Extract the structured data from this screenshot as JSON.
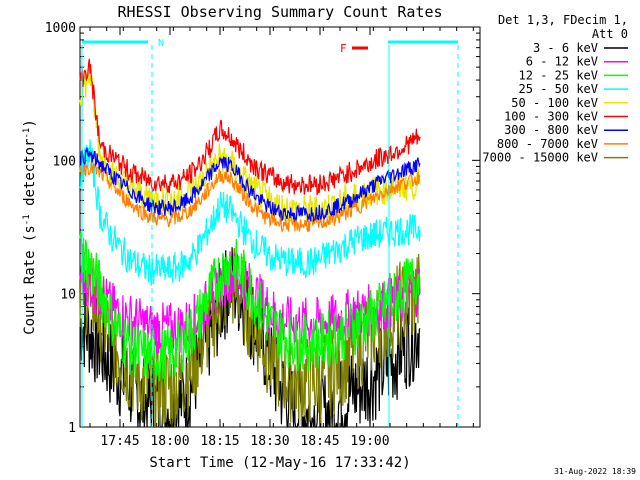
{
  "chart_data": {
    "type": "line",
    "title": "RHESSI Observing Summary Count Rates",
    "xlabel": "Start Time (12-May-16 17:33:42)",
    "ylabel_main": "Count Rate (s",
    "ylabel_sup1": "-1",
    "ylabel_mid": " detector",
    "ylabel_sup2": "-1",
    "ylabel_end": ")",
    "y_scale": "log",
    "ylim": [
      1,
      1000
    ],
    "y_ticks": [
      {
        "value": 1,
        "label": "1"
      },
      {
        "value": 10,
        "label": "10"
      },
      {
        "value": 100,
        "label": "100"
      },
      {
        "value": 1000,
        "label": "1000"
      }
    ],
    "x_range_minutes": [
      17.55,
      19.55
    ],
    "x_ticks": [
      {
        "value": 17.75,
        "label": "17:45"
      },
      {
        "value": 18.0,
        "label": "18:00"
      },
      {
        "value": 18.25,
        "label": "18:15"
      },
      {
        "value": 18.5,
        "label": "18:30"
      },
      {
        "value": 18.75,
        "label": "18:45"
      },
      {
        "value": 19.0,
        "label": "19:00"
      }
    ],
    "legend_title_1": "Det 1,3, FDecim 1,",
    "legend_title_2": "Att 0",
    "legend_position": "right",
    "series": [
      {
        "name": "3 - 6 keV",
        "color": "#000000",
        "x": [
          17.55,
          17.6,
          17.65,
          17.7,
          17.75,
          17.8,
          17.85,
          17.9,
          17.95,
          18.0,
          18.05,
          18.1,
          18.15,
          18.2,
          18.25,
          18.3,
          18.35,
          18.4,
          18.45,
          18.5,
          18.55,
          18.6,
          18.65,
          18.7,
          18.75,
          18.8,
          18.85,
          18.9,
          18.95,
          19.0,
          19.05,
          19.1,
          19.15,
          19.2,
          19.25
        ],
        "values": [
          6,
          5,
          4,
          3,
          2.5,
          2,
          1.6,
          1.5,
          1.4,
          1.4,
          1.5,
          2,
          3,
          5,
          8,
          12,
          10,
          7,
          5,
          3,
          2,
          1.5,
          1.3,
          1.2,
          1.2,
          1.3,
          1.5,
          1.8,
          2,
          2.3,
          2.6,
          3,
          3.8,
          4.5,
          5.5
        ]
      },
      {
        "name": "6 - 12 keV",
        "color": "#ff00ff",
        "x": [
          17.55,
          17.6,
          17.65,
          17.7,
          17.75,
          17.8,
          17.85,
          17.9,
          17.95,
          18.0,
          18.05,
          18.1,
          18.15,
          18.2,
          18.25,
          18.3,
          18.35,
          18.4,
          18.45,
          18.5,
          18.55,
          18.6,
          18.65,
          18.7,
          18.75,
          18.8,
          18.85,
          18.9,
          18.95,
          19.0,
          19.05,
          19.1,
          19.15,
          19.2,
          19.25
        ],
        "values": [
          14,
          12,
          10,
          8,
          7,
          6.5,
          6,
          5.5,
          5.5,
          5.5,
          5.6,
          6,
          7,
          9,
          12,
          14,
          13,
          11,
          9,
          7.5,
          6.5,
          6,
          6,
          6,
          6,
          6.2,
          6.5,
          7,
          7.2,
          7.5,
          8,
          8.5,
          9,
          10,
          11
        ]
      },
      {
        "name": "12 - 25 keV",
        "color": "#00ff00",
        "x": [
          17.55,
          17.6,
          17.65,
          17.7,
          17.75,
          17.8,
          17.85,
          17.9,
          17.95,
          18.0,
          18.05,
          18.1,
          18.15,
          18.2,
          18.25,
          18.3,
          18.35,
          18.4,
          18.45,
          18.5,
          18.55,
          18.6,
          18.65,
          18.7,
          18.75,
          18.8,
          18.85,
          18.9,
          18.95,
          19.0,
          19.05,
          19.1,
          19.15,
          19.2,
          19.25
        ],
        "values": [
          22,
          16,
          11,
          7,
          5,
          4,
          3.6,
          3.4,
          3.4,
          3.5,
          4,
          5,
          7,
          10,
          14,
          17,
          15,
          11,
          8,
          6,
          5,
          4.5,
          4.3,
          4.3,
          4.4,
          4.6,
          5,
          5.5,
          6,
          6.5,
          7.5,
          8.5,
          10,
          12,
          14
        ]
      },
      {
        "name": "25 - 50 keV",
        "color": "#00ffff",
        "x": [
          17.55,
          17.6,
          17.65,
          17.7,
          17.75,
          17.8,
          17.85,
          17.9,
          17.95,
          18.0,
          18.05,
          18.1,
          18.15,
          18.2,
          18.25,
          18.3,
          18.35,
          18.4,
          18.45,
          18.5,
          18.55,
          18.6,
          18.65,
          18.7,
          18.75,
          18.8,
          18.85,
          18.9,
          18.95,
          19.0,
          19.05,
          19.1,
          19.15,
          19.2,
          19.25
        ],
        "values": [
          80,
          120,
          40,
          28,
          22,
          18,
          16,
          15,
          15,
          15,
          16,
          18,
          23,
          32,
          46,
          42,
          33,
          26,
          22,
          19,
          18,
          17,
          17,
          17,
          18,
          20,
          22,
          24,
          26,
          27,
          28,
          29,
          30,
          30,
          30
        ]
      },
      {
        "name": "50 - 100 keV",
        "color": "#e6e600",
        "x": [
          17.55,
          17.6,
          17.65,
          17.7,
          17.75,
          17.8,
          17.85,
          17.9,
          17.95,
          18.0,
          18.05,
          18.1,
          18.15,
          18.2,
          18.25,
          18.3,
          18.35,
          18.4,
          18.45,
          18.5,
          18.55,
          18.6,
          18.65,
          18.7,
          18.75,
          18.8,
          18.85,
          18.9,
          18.95,
          19.0,
          19.05,
          19.1,
          19.15,
          19.2,
          19.25
        ],
        "values": [
          300,
          450,
          110,
          80,
          70,
          62,
          56,
          52,
          50,
          50,
          52,
          58,
          68,
          85,
          105,
          95,
          78,
          64,
          55,
          49,
          45,
          43,
          42,
          42,
          43,
          45,
          48,
          52,
          55,
          58,
          60,
          62,
          64,
          65,
          66
        ]
      },
      {
        "name": "100 - 300 keV",
        "color": "#ff0000",
        "x": [
          17.55,
          17.6,
          17.65,
          17.7,
          17.75,
          17.8,
          17.85,
          17.9,
          17.95,
          18.0,
          18.05,
          18.1,
          18.15,
          18.2,
          18.25,
          18.3,
          18.35,
          18.4,
          18.45,
          18.5,
          18.55,
          18.6,
          18.65,
          18.7,
          18.75,
          18.8,
          18.85,
          18.9,
          18.95,
          19.0,
          19.05,
          19.1,
          19.15,
          19.2,
          19.25
        ],
        "values": [
          400,
          500,
          130,
          110,
          95,
          82,
          75,
          70,
          68,
          68,
          70,
          78,
          95,
          125,
          170,
          150,
          120,
          98,
          85,
          76,
          70,
          67,
          66,
          66,
          67,
          70,
          75,
          82,
          88,
          95,
          105,
          112,
          122,
          135,
          150
        ]
      },
      {
        "name": "300 - 800 keV",
        "color": "#0000ff",
        "x": [
          17.55,
          17.6,
          17.65,
          17.7,
          17.75,
          17.8,
          17.85,
          17.9,
          17.95,
          18.0,
          18.05,
          18.1,
          18.15,
          18.2,
          18.25,
          18.3,
          18.35,
          18.4,
          18.45,
          18.5,
          18.55,
          18.6,
          18.65,
          18.7,
          18.75,
          18.8,
          18.85,
          18.9,
          18.95,
          19.0,
          19.05,
          19.1,
          19.15,
          19.2,
          19.25
        ],
        "values": [
          105,
          110,
          95,
          80,
          68,
          60,
          52,
          46,
          44,
          44,
          46,
          52,
          62,
          78,
          98,
          92,
          76,
          60,
          50,
          44,
          41,
          40,
          40,
          40,
          41,
          43,
          46,
          50,
          56,
          62,
          70,
          76,
          82,
          88,
          95
        ]
      },
      {
        "name": "800 - 7000 keV",
        "color": "#ff8000",
        "x": [
          17.55,
          17.6,
          17.65,
          17.7,
          17.75,
          17.8,
          17.85,
          17.9,
          17.95,
          18.0,
          18.05,
          18.1,
          18.15,
          18.2,
          18.25,
          18.3,
          18.35,
          18.4,
          18.45,
          18.5,
          18.55,
          18.6,
          18.65,
          18.7,
          18.75,
          18.8,
          18.85,
          18.9,
          18.95,
          19.0,
          19.05,
          19.1,
          19.15,
          19.2,
          19.25
        ],
        "values": [
          85,
          90,
          80,
          68,
          56,
          48,
          42,
          38,
          36,
          36,
          38,
          42,
          50,
          62,
          78,
          74,
          60,
          48,
          40,
          36,
          34,
          33,
          33,
          33,
          34,
          36,
          38,
          42,
          46,
          50,
          56,
          62,
          66,
          70,
          75
        ]
      },
      {
        "name": "7000 - 15000 keV",
        "color": "#808000",
        "x": [
          17.55,
          17.6,
          17.65,
          17.7,
          17.75,
          17.8,
          17.85,
          17.9,
          17.95,
          18.0,
          18.05,
          18.1,
          18.15,
          18.2,
          18.25,
          18.3,
          18.35,
          18.4,
          18.45,
          18.5,
          18.55,
          18.6,
          18.65,
          18.7,
          18.75,
          18.8,
          18.85,
          18.9,
          18.95,
          19.0,
          19.05,
          19.1,
          19.15,
          19.2,
          19.25
        ],
        "values": [
          12,
          10,
          7,
          5,
          3.5,
          2.7,
          2.3,
          2,
          2,
          2,
          2.2,
          2.8,
          4,
          6,
          9,
          12,
          10,
          7,
          5,
          3.5,
          2.8,
          2.4,
          2.2,
          2.2,
          2.3,
          2.6,
          3,
          3.6,
          4.3,
          5,
          6,
          7,
          8,
          9,
          10
        ]
      }
    ],
    "flags": [
      {
        "label": "N",
        "color": "#00ffff"
      },
      {
        "label": "F",
        "color": "#ff0000"
      }
    ]
  },
  "timestamp": "31-Aug-2022 18:39"
}
